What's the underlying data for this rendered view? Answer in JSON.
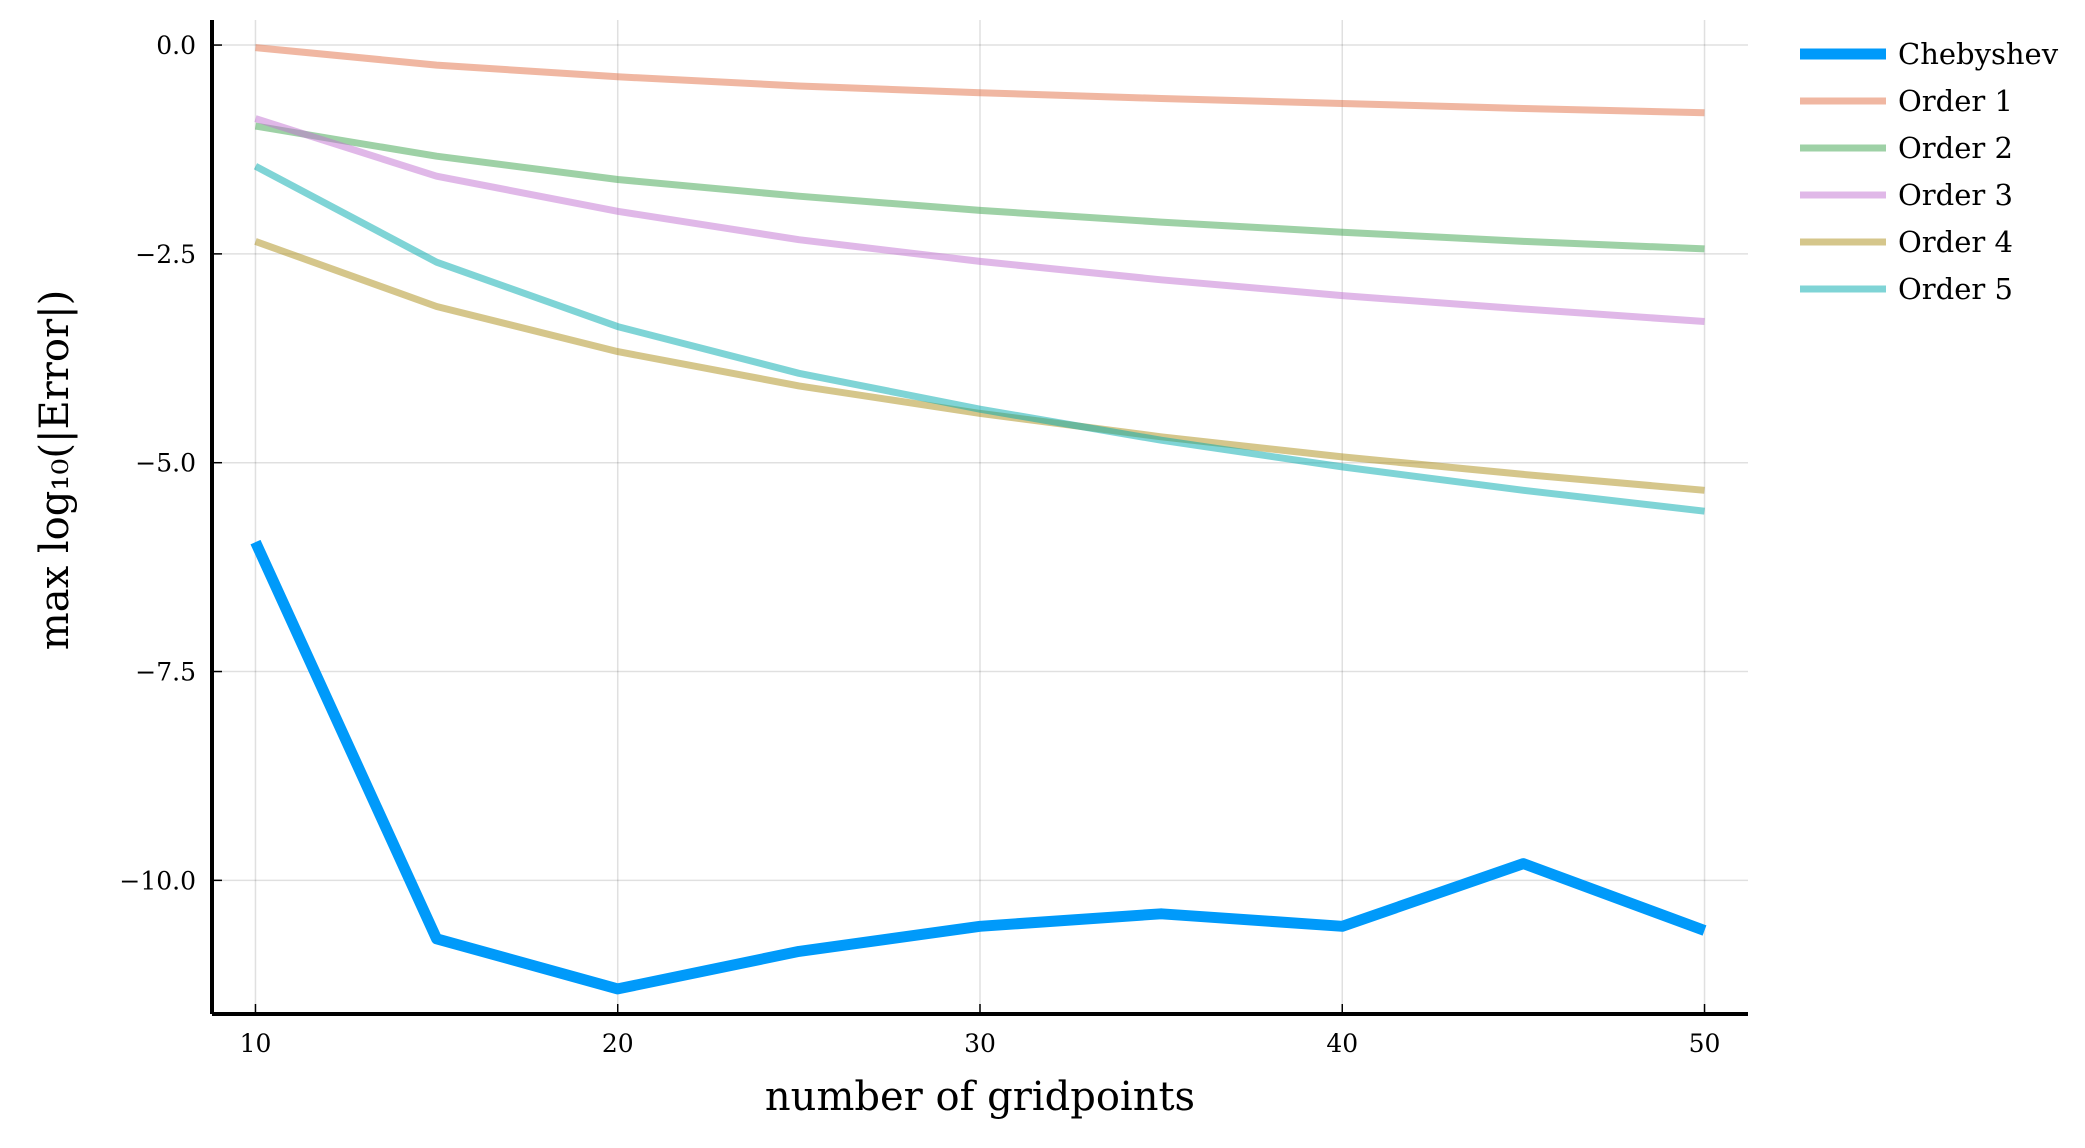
{
  "chart_data": {
    "type": "line",
    "title": "",
    "xlabel": "number of gridpoints",
    "ylabel": "max log₁₀(|Error|)",
    "xlim": [
      8.8,
      51.2
    ],
    "ylim": [
      -11.6,
      0.3
    ],
    "xticks": [
      10,
      20,
      30,
      40,
      50
    ],
    "yticks": [
      0.0,
      -2.5,
      -5.0,
      -7.5,
      -10.0
    ],
    "xtick_labels": [
      "10",
      "20",
      "30",
      "40",
      "50"
    ],
    "ytick_labels": [
      "0.0",
      "−2.5",
      "−5.0",
      "−7.5",
      "−10.0"
    ],
    "grid": true,
    "legend_position": "outside-right-top",
    "x": [
      10,
      15,
      20,
      25,
      30,
      35,
      40,
      45,
      50
    ],
    "series": [
      {
        "name": "Chebyshev",
        "color": "#009AFA",
        "width": 11,
        "opacity": 1.0,
        "values": [
          -5.95,
          -10.7,
          -11.3,
          -10.85,
          -10.55,
          -10.4,
          -10.55,
          -9.8,
          -10.6
        ]
      },
      {
        "name": "Order 1",
        "color": "#E26F46",
        "width": 7,
        "opacity": 0.5,
        "values": [
          -0.03,
          -0.24,
          -0.38,
          -0.49,
          -0.57,
          -0.64,
          -0.7,
          -0.76,
          -0.81
        ]
      },
      {
        "name": "Order 2",
        "color": "#3EA44E",
        "width": 7,
        "opacity": 0.5,
        "values": [
          -0.97,
          -1.33,
          -1.61,
          -1.81,
          -1.98,
          -2.12,
          -2.24,
          -2.35,
          -2.44
        ]
      },
      {
        "name": "Order 3",
        "color": "#C271D2",
        "width": 7,
        "opacity": 0.5,
        "values": [
          -0.88,
          -1.57,
          -1.99,
          -2.33,
          -2.59,
          -2.81,
          -3.0,
          -3.16,
          -3.31
        ]
      },
      {
        "name": "Order 4",
        "color": "#AC8D18",
        "width": 7,
        "opacity": 0.5,
        "values": [
          -2.35,
          -3.13,
          -3.67,
          -4.08,
          -4.41,
          -4.69,
          -4.93,
          -5.14,
          -5.33
        ]
      },
      {
        "name": "Order 5",
        "color": "#00A9AD",
        "width": 7,
        "opacity": 0.5,
        "values": [
          -1.45,
          -2.6,
          -3.37,
          -3.93,
          -4.36,
          -4.73,
          -5.05,
          -5.33,
          -5.58
        ]
      }
    ]
  }
}
